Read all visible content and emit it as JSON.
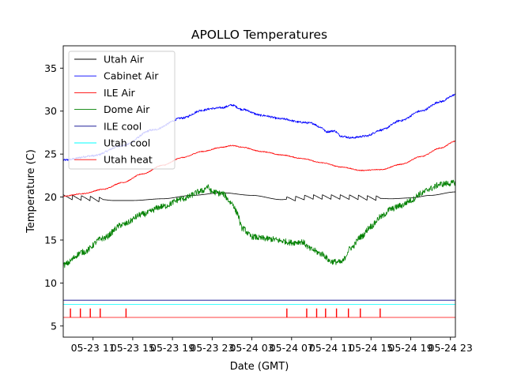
{
  "chart_data": {
    "type": "line",
    "title": "APOLLO Temperatures",
    "xlabel": "Date (GMT)",
    "ylabel": "Temperature (C)",
    "x_unit": "hours since 2023-05-23 08:00 GMT (first data point)",
    "xlim": [
      0,
      39.5
    ],
    "ylim": [
      3.7,
      37.6
    ],
    "grid": false,
    "legend_position": "top-left",
    "x_ticks": [
      {
        "value": 3,
        "label": "05-23 11"
      },
      {
        "value": 7,
        "label": "05-23 15"
      },
      {
        "value": 11,
        "label": "05-23 19"
      },
      {
        "value": 15,
        "label": "05-23 23"
      },
      {
        "value": 19,
        "label": "05-24 03"
      },
      {
        "value": 23,
        "label": "05-24 07"
      },
      {
        "value": 27,
        "label": "05-24 11"
      },
      {
        "value": 31,
        "label": "05-24 15"
      },
      {
        "value": 35,
        "label": "05-24 19"
      },
      {
        "value": 39,
        "label": "05-24 23"
      }
    ],
    "y_ticks": [
      {
        "value": 5,
        "label": "5"
      },
      {
        "value": 10,
        "label": "10"
      },
      {
        "value": 15,
        "label": "15"
      },
      {
        "value": 20,
        "label": "20"
      },
      {
        "value": 25,
        "label": "25"
      },
      {
        "value": 30,
        "label": "30"
      },
      {
        "value": 35,
        "label": "35"
      }
    ],
    "series": [
      {
        "name": "Utah Air",
        "color": "#000000",
        "style": "sawtooth",
        "x": [
          0,
          2,
          4,
          5,
          7,
          10,
          13,
          16,
          19,
          22,
          23,
          25,
          27,
          29,
          31,
          33,
          35,
          37,
          39.5
        ],
        "y": [
          20.0,
          19.9,
          19.7,
          19.6,
          19.6,
          19.8,
          20.2,
          20.5,
          20.2,
          19.7,
          19.8,
          20.0,
          20.0,
          20.0,
          19.9,
          19.8,
          19.9,
          20.2,
          20.6
        ],
        "sawtooth_ranges": [
          [
            0,
            4
          ],
          [
            22.5,
            32
          ]
        ],
        "sawtooth_period": 0.9,
        "sawtooth_amp": 0.55
      },
      {
        "name": "Cabinet Air",
        "color": "#0000ff",
        "style": "noisy",
        "x": [
          0,
          3,
          6,
          9,
          12,
          14,
          15,
          16,
          17,
          18,
          20,
          22,
          24,
          25,
          26,
          26.5,
          27.3,
          28,
          29,
          30.5,
          32,
          34,
          36,
          38,
          39.5
        ],
        "y": [
          24.3,
          24.8,
          26.0,
          27.8,
          29.2,
          30.1,
          30.3,
          30.4,
          30.7,
          30.2,
          29.5,
          29.1,
          28.7,
          28.6,
          28.1,
          27.6,
          27.7,
          27.1,
          26.9,
          27.1,
          27.8,
          28.9,
          30.0,
          31.1,
          31.9
        ],
        "noise": 0.12
      },
      {
        "name": "ILE Air",
        "color": "#ff0000",
        "style": "smooth",
        "x": [
          0,
          2,
          4,
          6,
          8,
          10,
          12,
          14,
          16,
          17,
          18,
          20,
          22,
          24,
          26,
          28,
          30,
          32,
          34,
          36,
          38,
          39.5
        ],
        "y": [
          20.1,
          20.4,
          20.9,
          21.7,
          22.7,
          23.7,
          24.6,
          25.3,
          25.8,
          26.0,
          25.8,
          25.3,
          24.9,
          24.5,
          24.0,
          23.5,
          23.1,
          23.2,
          23.8,
          24.7,
          25.7,
          26.5
        ],
        "noise": 0.05
      },
      {
        "name": "Dome Air",
        "color": "#008000",
        "style": "noisy",
        "x": [
          0,
          2,
          4,
          6,
          8,
          10,
          12,
          14,
          14.5,
          15,
          16,
          17,
          17.5,
          18,
          19,
          20,
          21,
          22,
          23,
          24,
          25,
          26,
          27,
          28,
          29,
          30,
          31,
          32,
          33,
          34,
          35,
          36,
          37,
          38,
          39,
          39.5
        ],
        "y": [
          12.1,
          13.6,
          15.2,
          16.8,
          18.0,
          18.9,
          19.8,
          20.7,
          21.2,
          20.6,
          20.4,
          19.3,
          18.2,
          16.4,
          15.4,
          15.2,
          15.1,
          14.9,
          14.7,
          14.8,
          13.9,
          13.4,
          12.5,
          12.4,
          14.1,
          15.4,
          16.6,
          17.7,
          18.6,
          19.0,
          19.6,
          20.4,
          21.0,
          21.5,
          21.6,
          21.7
        ],
        "noise": 0.35
      },
      {
        "name": "ILE cool",
        "color": "#00008b",
        "style": "flat",
        "x": [
          0,
          39.5
        ],
        "y": [
          8.0,
          8.0
        ]
      },
      {
        "name": "Utah cool",
        "color": "#00ffff",
        "style": "flat",
        "x": [
          0,
          39.5
        ],
        "y": [
          7.5,
          7.5
        ]
      },
      {
        "name": "Utah heat",
        "color": "#ff0000",
        "style": "pulses",
        "x": [
          0,
          39.5
        ],
        "y": [
          6.0,
          6.0
        ],
        "pulse_top": 7.0,
        "pulse_x": [
          0.7,
          1.7,
          2.7,
          3.7,
          6.3,
          22.5,
          24.5,
          25.5,
          26.4,
          27.5,
          28.7,
          29.9,
          31.9
        ]
      }
    ]
  }
}
